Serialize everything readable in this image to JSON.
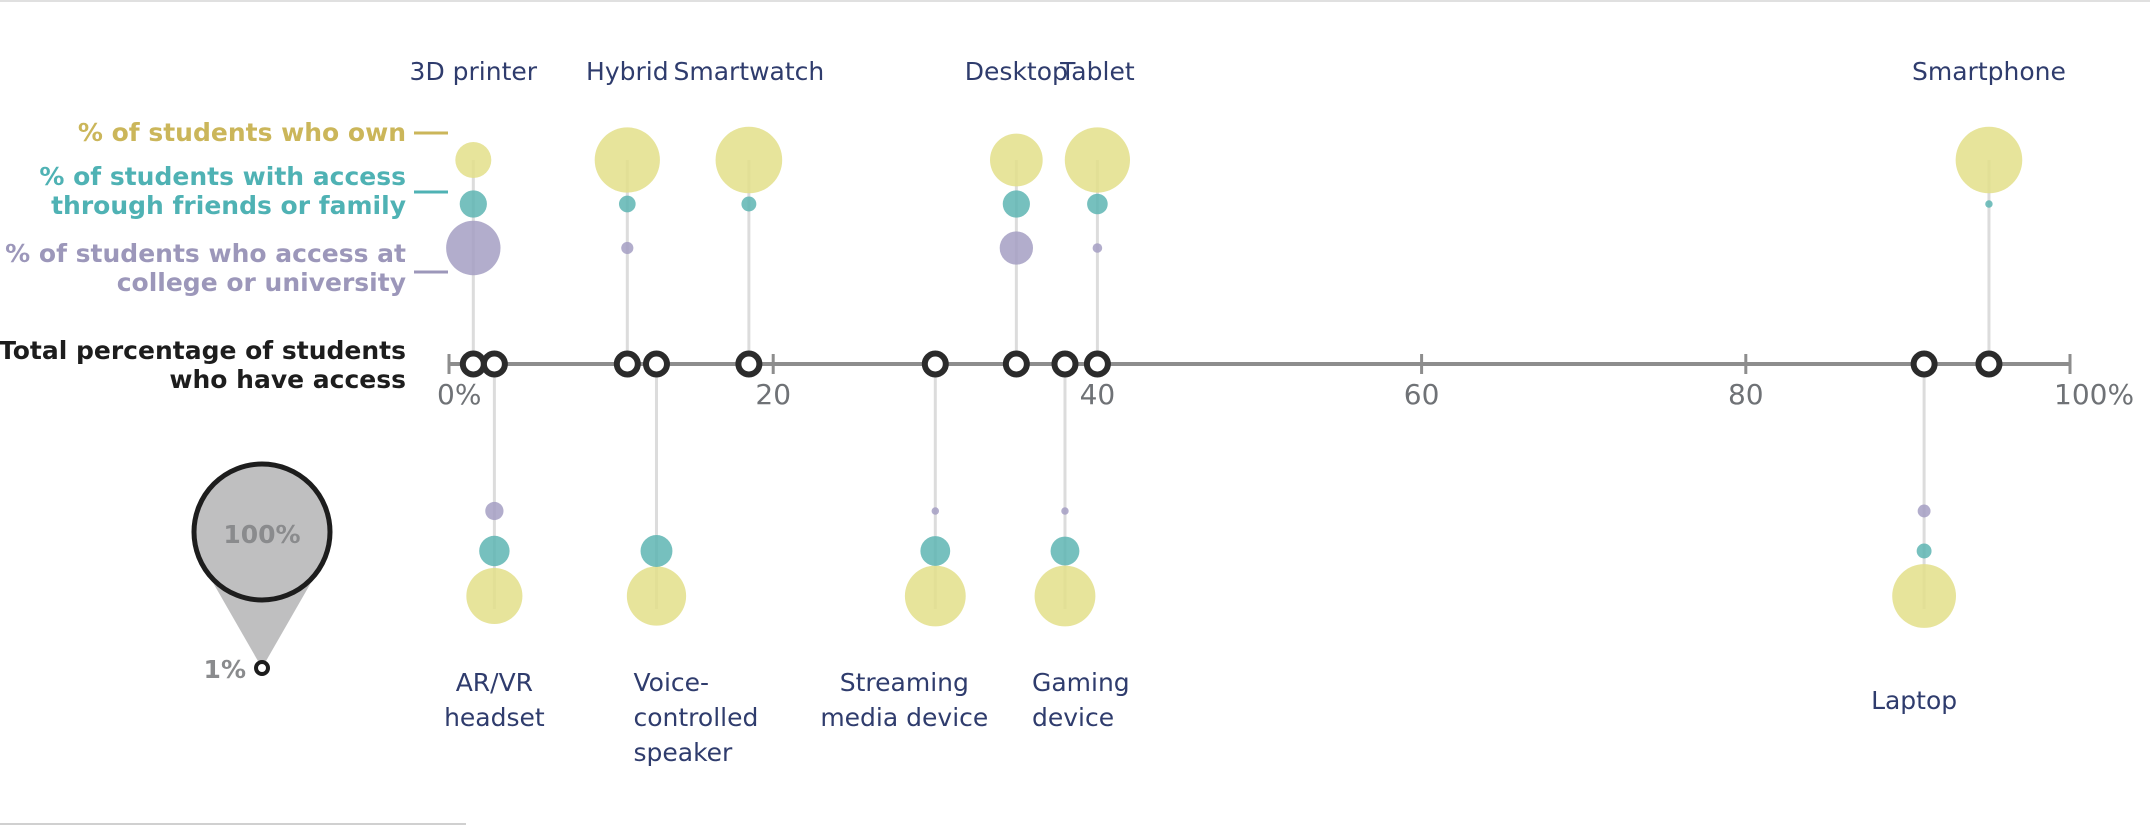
{
  "chart_data": {
    "type": "scatter",
    "title": "",
    "xlim": [
      0,
      100
    ],
    "x_ticks": [
      {
        "value": 0,
        "label": "0%"
      },
      {
        "value": 20,
        "label": "20"
      },
      {
        "value": 40,
        "label": "40"
      },
      {
        "value": 60,
        "label": "60"
      },
      {
        "value": 80,
        "label": "80"
      },
      {
        "value": 100,
        "label": "100%"
      }
    ],
    "axis_label": "Total percentage of students who have access",
    "axis_label_lines": [
      "Total percentage of students",
      "who have access"
    ],
    "legend": [
      {
        "key": "own",
        "lines": [
          "% of students who own"
        ],
        "color": "#cbb65a"
      },
      {
        "key": "friends",
        "lines": [
          "%  of students with access",
          "through friends or family"
        ],
        "color": "#4fb2b4"
      },
      {
        "key": "college",
        "lines": [
          "% of students who access at",
          "college or university"
        ],
        "color": "#9c97ba"
      }
    ],
    "size_legend": {
      "max_label": "100%",
      "min_label": "1%"
    },
    "colors": {
      "own": "#e3df8a",
      "friends": "#5eb5b3",
      "college": "#a49fc3",
      "marker": "#2b2b2b",
      "stem": "#dcdcdc",
      "axis": "#8d8d8d"
    },
    "devices": [
      {
        "name": "3D printer",
        "label_lines": [
          "3D printer"
        ],
        "position": "top",
        "total": 1.5,
        "own": 7,
        "friends": 4,
        "college": 16
      },
      {
        "name": "Hybrid",
        "label_lines": [
          "Hybrid"
        ],
        "position": "top",
        "total": 11,
        "own": 23,
        "friends": 1.5,
        "college": 0.8
      },
      {
        "name": "Smartwatch",
        "label_lines": [
          "Smartwatch"
        ],
        "position": "top",
        "total": 18.5,
        "own": 24,
        "friends": 1.2,
        "college": 0
      },
      {
        "name": "Desktop",
        "label_lines": [
          "Desktop"
        ],
        "position": "top",
        "total": 35,
        "own": 15,
        "friends": 4,
        "college": 6
      },
      {
        "name": "Tablet",
        "label_lines": [
          "Tablet"
        ],
        "position": "top",
        "total": 40,
        "own": 23,
        "friends": 2.3,
        "college": 0.5
      },
      {
        "name": "Smartphone",
        "label_lines": [
          "Smartphone"
        ],
        "position": "top",
        "total": 95,
        "own": 24,
        "friends": 0.3,
        "college": 0
      },
      {
        "name": "AR/VR headset",
        "label_lines": [
          "AR/VR",
          "headset"
        ],
        "position": "bottom",
        "total": 2.8,
        "own": 17,
        "friends": 5,
        "college": 1.8
      },
      {
        "name": "Voice-controlled speaker",
        "label_lines": [
          "Voice-",
          "controlled",
          "speaker"
        ],
        "position": "bottom",
        "total": 12.8,
        "own": 19,
        "friends": 5.5,
        "college": 0
      },
      {
        "name": "Streaming media device",
        "label_lines": [
          "Streaming",
          "media device"
        ],
        "position": "bottom",
        "total": 30,
        "own": 20,
        "friends": 4.8,
        "college": 0.3
      },
      {
        "name": "Gaming device",
        "label_lines": [
          "Gaming",
          "device"
        ],
        "position": "bottom",
        "total": 38,
        "own": 20,
        "friends": 4.5,
        "college": 0.3
      },
      {
        "name": "Laptop",
        "label_lines": [
          "Laptop"
        ],
        "position": "bottom",
        "total": 91,
        "own": 22,
        "friends": 1.2,
        "college": 0.9
      }
    ]
  }
}
